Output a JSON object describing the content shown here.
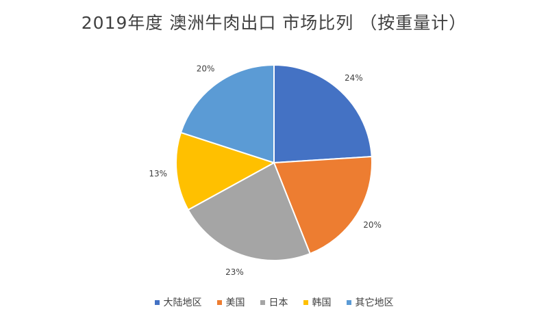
{
  "chart_data": {
    "type": "pie",
    "title": "2019年度 澳洲牛肉出口 市场比列 （按重量计）",
    "categories": [
      "大陆地区",
      "美国",
      "日本",
      "韩国",
      "其它地区"
    ],
    "values": [
      24,
      20,
      23,
      13,
      20
    ],
    "labels": [
      "24%",
      "20%",
      "23%",
      "13%",
      "20%"
    ],
    "colors": [
      "#4472C4",
      "#ED7D31",
      "#A5A5A5",
      "#FFC000",
      "#5B9BD5"
    ],
    "legend_position": "bottom",
    "start": "12 o'clock",
    "direction": "clockwise"
  }
}
